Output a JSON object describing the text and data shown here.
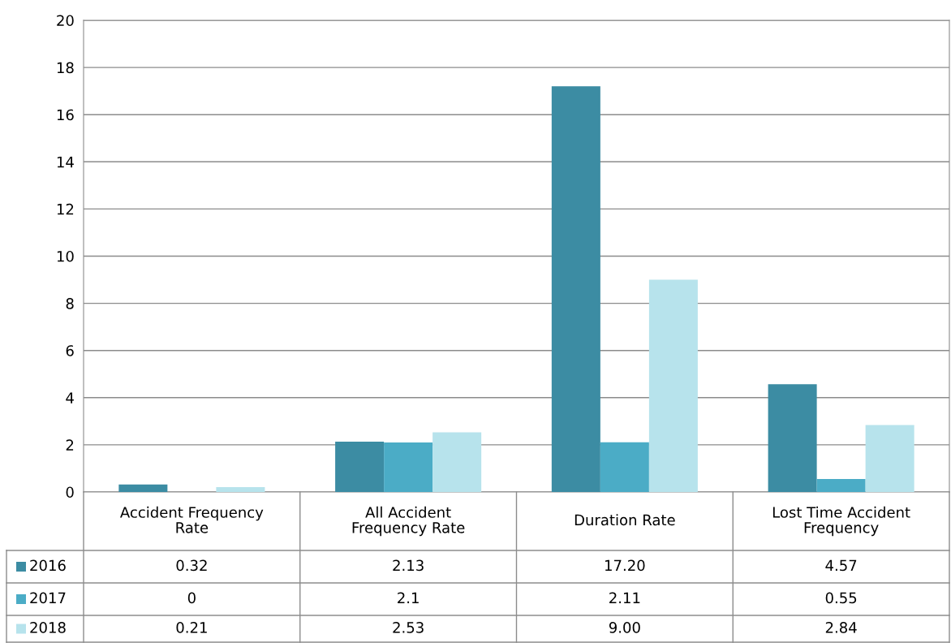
{
  "chart_data": {
    "type": "bar",
    "categories": [
      "Accident Frequency\nRate",
      "All Accident\nFrequency Rate",
      "Duration Rate",
      "Lost Time Accident\nFrequency"
    ],
    "series": [
      {
        "name": "2016",
        "color": "#3c8ca3",
        "values": [
          0.32,
          2.13,
          17.2,
          4.57
        ],
        "value_labels": [
          "0.32",
          "2.13",
          "17.20",
          "4.57"
        ]
      },
      {
        "name": "2017",
        "color": "#4bacc6",
        "values": [
          0,
          2.1,
          2.11,
          0.55
        ],
        "value_labels": [
          "0",
          "2.1",
          "2.11",
          "0.55"
        ]
      },
      {
        "name": "2018",
        "color": "#b7e3ec",
        "values": [
          0.21,
          2.53,
          9.0,
          2.84
        ],
        "value_labels": [
          "0.21",
          "2.53",
          "9.00",
          "2.84"
        ]
      }
    ],
    "ylim": [
      0,
      20
    ],
    "yticks": [
      0,
      2,
      4,
      6,
      8,
      10,
      12,
      14,
      16,
      18,
      20
    ],
    "grid": "y",
    "legend": "bottom",
    "data_labels": true
  }
}
